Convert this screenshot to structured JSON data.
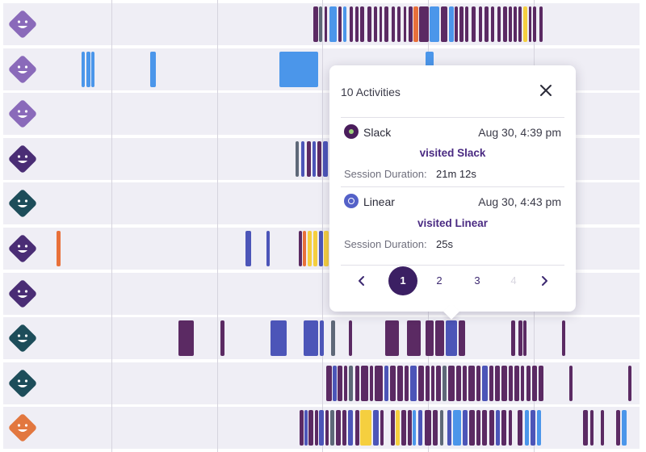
{
  "colors": {
    "purple": "#5b2a63",
    "blue": "#4b96ea",
    "indigo": "#4c55b8",
    "orange": "#e8703a",
    "yellow": "#f5cf3f",
    "gray": "#5e6878",
    "avatar_purple": "#8a6aba",
    "avatar_violet": "#4a2d75",
    "avatar_teal": "#1d4d5a",
    "avatar_orange": "#e2773f",
    "popup_accent": "#3b1f63"
  },
  "rows": [
    {
      "avatar": "avatar_purple",
      "bars": [
        [
          388,
          6,
          "purple"
        ],
        [
          395,
          4,
          "gray"
        ],
        [
          402,
          3,
          "purple"
        ],
        [
          408,
          9,
          "blue"
        ],
        [
          419,
          4,
          "purple"
        ],
        [
          425,
          4,
          "blue"
        ],
        [
          433,
          4,
          "purple"
        ],
        [
          440,
          4,
          "purple"
        ],
        [
          446,
          5,
          "purple"
        ],
        [
          455,
          5,
          "purple"
        ],
        [
          463,
          4,
          "purple"
        ],
        [
          470,
          3,
          "purple"
        ],
        [
          476,
          5,
          "purple"
        ],
        [
          485,
          4,
          "purple"
        ],
        [
          492,
          4,
          "purple"
        ],
        [
          500,
          3,
          "purple"
        ],
        [
          506,
          5,
          "purple"
        ],
        [
          512,
          6,
          "orange"
        ],
        [
          519,
          12,
          "purple"
        ],
        [
          532,
          12,
          "blue"
        ],
        [
          546,
          8,
          "purple"
        ],
        [
          556,
          6,
          "blue"
        ],
        [
          563,
          4,
          "purple"
        ],
        [
          569,
          5,
          "purple"
        ],
        [
          576,
          4,
          "purple"
        ],
        [
          584,
          5,
          "purple"
        ],
        [
          593,
          4,
          "purple"
        ],
        [
          600,
          5,
          "purple"
        ],
        [
          608,
          4,
          "purple"
        ],
        [
          616,
          4,
          "purple"
        ],
        [
          623,
          5,
          "purple"
        ],
        [
          630,
          4,
          "purple"
        ],
        [
          636,
          4,
          "purple"
        ],
        [
          642,
          4,
          "purple"
        ],
        [
          648,
          5,
          "yellow"
        ],
        [
          655,
          3,
          "purple"
        ],
        [
          660,
          4,
          "purple"
        ],
        [
          668,
          4,
          "purple"
        ]
      ]
    },
    {
      "avatar": "avatar_purple",
      "bars": [
        [
          101,
          4,
          "blue"
        ],
        [
          107,
          5,
          "blue"
        ],
        [
          113,
          4,
          "blue"
        ],
        [
          186,
          7,
          "blue"
        ],
        [
          346,
          48,
          "blue"
        ],
        [
          527,
          10,
          "blue"
        ]
      ]
    },
    {
      "avatar": "avatar_purple",
      "bars": []
    },
    {
      "avatar": "avatar_violet",
      "bars": [
        [
          366,
          4,
          "gray"
        ],
        [
          373,
          4,
          "indigo"
        ],
        [
          380,
          5,
          "purple"
        ],
        [
          387,
          4,
          "indigo"
        ],
        [
          393,
          5,
          "purple"
        ],
        [
          400,
          6,
          "indigo"
        ]
      ]
    },
    {
      "avatar": "avatar_teal",
      "bars": []
    },
    {
      "avatar": "avatar_violet",
      "bars": [
        [
          70,
          5,
          "orange"
        ],
        [
          304,
          7,
          "indigo"
        ],
        [
          330,
          4,
          "indigo"
        ],
        [
          370,
          4,
          "purple"
        ],
        [
          375,
          4,
          "orange"
        ],
        [
          381,
          5,
          "yellow"
        ],
        [
          388,
          5,
          "yellow"
        ],
        [
          395,
          5,
          "indigo"
        ],
        [
          401,
          6,
          "yellow"
        ]
      ]
    },
    {
      "avatar": "avatar_violet",
      "bars": []
    },
    {
      "avatar": "avatar_teal",
      "bars": [
        [
          221,
          19,
          "purple"
        ],
        [
          273,
          5,
          "purple"
        ],
        [
          335,
          20,
          "indigo"
        ],
        [
          376,
          18,
          "indigo"
        ],
        [
          396,
          5,
          "indigo"
        ],
        [
          410,
          5,
          "gray"
        ],
        [
          432,
          4,
          "purple"
        ],
        [
          477,
          17,
          "purple"
        ],
        [
          504,
          17,
          "purple"
        ],
        [
          527,
          10,
          "purple"
        ],
        [
          539,
          11,
          "purple"
        ],
        [
          552,
          14,
          "indigo"
        ],
        [
          568,
          8,
          "purple"
        ],
        [
          633,
          5,
          "purple"
        ],
        [
          642,
          5,
          "purple"
        ],
        [
          648,
          4,
          "purple"
        ],
        [
          696,
          4,
          "purple"
        ]
      ]
    },
    {
      "avatar": "avatar_teal",
      "bars": [
        [
          404,
          7,
          "purple"
        ],
        [
          412,
          5,
          "indigo"
        ],
        [
          418,
          6,
          "purple"
        ],
        [
          426,
          4,
          "purple"
        ],
        [
          432,
          5,
          "gray"
        ],
        [
          440,
          5,
          "purple"
        ],
        [
          447,
          9,
          "purple"
        ],
        [
          458,
          4,
          "purple"
        ],
        [
          464,
          10,
          "purple"
        ],
        [
          476,
          5,
          "indigo"
        ],
        [
          483,
          7,
          "purple"
        ],
        [
          492,
          7,
          "purple"
        ],
        [
          501,
          5,
          "purple"
        ],
        [
          508,
          8,
          "indigo"
        ],
        [
          518,
          7,
          "purple"
        ],
        [
          527,
          5,
          "purple"
        ],
        [
          534,
          4,
          "purple"
        ],
        [
          540,
          6,
          "purple"
        ],
        [
          548,
          5,
          "gray"
        ],
        [
          555,
          8,
          "purple"
        ],
        [
          565,
          6,
          "purple"
        ],
        [
          573,
          5,
          "purple"
        ],
        [
          580,
          8,
          "purple"
        ],
        [
          590,
          5,
          "purple"
        ],
        [
          597,
          7,
          "indigo"
        ],
        [
          606,
          5,
          "purple"
        ],
        [
          613,
          6,
          "purple"
        ],
        [
          621,
          7,
          "purple"
        ],
        [
          630,
          5,
          "purple"
        ],
        [
          637,
          6,
          "purple"
        ],
        [
          645,
          4,
          "purple"
        ],
        [
          652,
          5,
          "purple"
        ],
        [
          659,
          6,
          "purple"
        ],
        [
          667,
          6,
          "purple"
        ],
        [
          705,
          4,
          "purple"
        ],
        [
          778,
          4,
          "purple"
        ]
      ]
    },
    {
      "avatar": "avatar_orange",
      "bars": [
        [
          371,
          5,
          "purple"
        ],
        [
          377,
          4,
          "indigo"
        ],
        [
          382,
          6,
          "purple"
        ],
        [
          390,
          4,
          "purple"
        ],
        [
          395,
          6,
          "indigo"
        ],
        [
          403,
          4,
          "purple"
        ],
        [
          409,
          5,
          "gray"
        ],
        [
          416,
          6,
          "purple"
        ],
        [
          424,
          5,
          "purple"
        ],
        [
          431,
          6,
          "indigo"
        ],
        [
          440,
          5,
          "purple"
        ],
        [
          446,
          14,
          "yellow"
        ],
        [
          462,
          7,
          "indigo"
        ],
        [
          471,
          4,
          "purple"
        ],
        [
          484,
          5,
          "purple"
        ],
        [
          490,
          5,
          "yellow"
        ],
        [
          497,
          6,
          "purple"
        ],
        [
          505,
          5,
          "purple"
        ],
        [
          511,
          4,
          "blue"
        ],
        [
          518,
          5,
          "indigo"
        ],
        [
          526,
          8,
          "purple"
        ],
        [
          536,
          6,
          "purple"
        ],
        [
          545,
          4,
          "gray"
        ],
        [
          554,
          5,
          "indigo"
        ],
        [
          561,
          10,
          "blue"
        ],
        [
          573,
          6,
          "indigo"
        ],
        [
          581,
          7,
          "purple"
        ],
        [
          590,
          5,
          "purple"
        ],
        [
          597,
          6,
          "purple"
        ],
        [
          606,
          6,
          "purple"
        ],
        [
          614,
          5,
          "indigo"
        ],
        [
          621,
          6,
          "purple"
        ],
        [
          630,
          4,
          "purple"
        ],
        [
          641,
          6,
          "purple"
        ],
        [
          650,
          5,
          "blue"
        ],
        [
          657,
          6,
          "indigo"
        ],
        [
          665,
          5,
          "blue"
        ],
        [
          722,
          6,
          "purple"
        ],
        [
          731,
          4,
          "purple"
        ],
        [
          744,
          4,
          "purple"
        ],
        [
          763,
          5,
          "purple"
        ],
        [
          770,
          6,
          "blue"
        ]
      ]
    }
  ],
  "popup": {
    "title": "10 Activities",
    "activities": [
      {
        "app": "Slack",
        "time": "Aug 30, 4:39 pm",
        "action": "visited Slack",
        "duration_label": "Session Duration:",
        "duration": "21m 12s",
        "icon_color": "#4a1d5c"
      },
      {
        "app": "Linear",
        "time": "Aug 30, 4:43 pm",
        "action": "visited Linear",
        "duration_label": "Session Duration:",
        "duration": "25s",
        "icon_color": "#5461c8"
      }
    ],
    "pages": [
      "1",
      "2",
      "3",
      "4"
    ],
    "current_page": "1"
  }
}
